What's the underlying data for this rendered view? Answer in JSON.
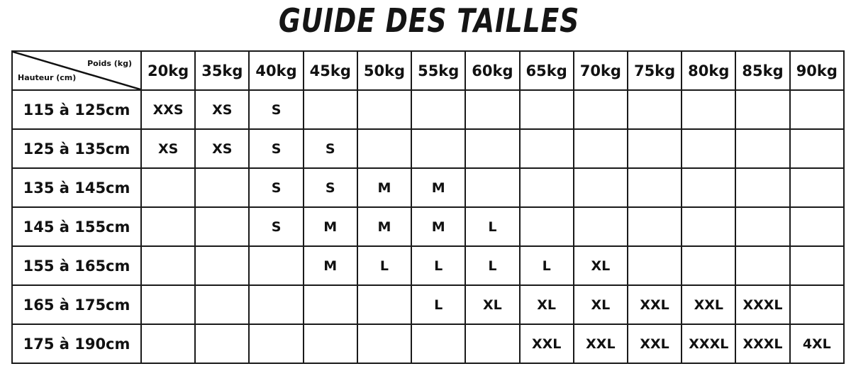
{
  "title": "GUIDE DES TAILLES",
  "table": {
    "corner_weight_label": "Poids (kg)",
    "corner_height_label": "Hauteur (cm)",
    "columns": [
      "20kg",
      "35kg",
      "40kg",
      "45kg",
      "50kg",
      "55kg",
      "60kg",
      "65kg",
      "70kg",
      "75kg",
      "80kg",
      "85kg",
      "90kg"
    ],
    "rows": [
      {
        "label": "115 à 125cm",
        "cells": [
          "XXS",
          "XS",
          "S",
          "",
          "",
          "",
          "",
          "",
          "",
          "",
          "",
          "",
          ""
        ]
      },
      {
        "label": "125 à 135cm",
        "cells": [
          "XS",
          "XS",
          "S",
          "S",
          "",
          "",
          "",
          "",
          "",
          "",
          "",
          "",
          ""
        ]
      },
      {
        "label": "135 à 145cm",
        "cells": [
          "",
          "",
          "S",
          "S",
          "M",
          "M",
          "",
          "",
          "",
          "",
          "",
          "",
          ""
        ]
      },
      {
        "label": "145 à 155cm",
        "cells": [
          "",
          "",
          "S",
          "M",
          "M",
          "M",
          "L",
          "",
          "",
          "",
          "",
          "",
          ""
        ]
      },
      {
        "label": "155 à 165cm",
        "cells": [
          "",
          "",
          "",
          "M",
          "L",
          "L",
          "L",
          "L",
          "XL",
          "",
          "",
          "",
          ""
        ]
      },
      {
        "label": "165 à 175cm",
        "cells": [
          "",
          "",
          "",
          "",
          "",
          "L",
          "XL",
          "XL",
          "XL",
          "XXL",
          "XXL",
          "XXXL",
          ""
        ]
      },
      {
        "label": "175 à 190cm",
        "cells": [
          "",
          "",
          "",
          "",
          "",
          "",
          "",
          "XXL",
          "XXL",
          "XXL",
          "XXXL",
          "XXXL",
          "4XL"
        ]
      }
    ]
  }
}
